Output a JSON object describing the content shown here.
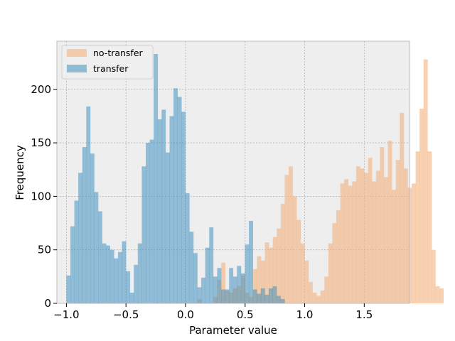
{
  "chart_data": {
    "type": "histogram",
    "title": "",
    "xlabel": "Parameter value",
    "ylabel": "Frequency",
    "xlim": [
      -1.08,
      1.88
    ],
    "ylim": [
      0,
      245
    ],
    "x_ticks": [
      -1.0,
      -0.5,
      0.0,
      0.5,
      1.0,
      1.5
    ],
    "x_tick_labels": [
      "−1.0",
      "−0.5",
      "0.0",
      "0.5",
      "1.0",
      "1.5"
    ],
    "y_ticks": [
      0,
      50,
      100,
      150,
      200
    ],
    "y_tick_labels": [
      "0",
      "50",
      "100",
      "150",
      "200"
    ],
    "grid": true,
    "legend_position": "top-left",
    "series": [
      {
        "name": "no-transfer",
        "color": "#f2b27f",
        "opacity": 0.6,
        "bin_start": 0.1,
        "bin_width": 0.0333,
        "values": [
          4,
          0,
          0,
          0,
          6,
          22,
          38,
          12,
          10,
          14,
          16,
          26,
          10,
          6,
          32,
          44,
          40,
          57,
          52,
          62,
          70,
          93,
          120,
          128,
          100,
          78,
          56,
          40,
          20,
          10,
          7,
          12,
          25,
          56,
          75,
          87,
          112,
          116,
          110,
          114,
          128,
          126,
          122,
          136,
          114,
          124,
          146,
          118,
          152,
          106,
          134,
          178,
          126,
          108,
          112,
          142,
          182,
          228,
          142,
          50,
          16,
          14
        ]
      },
      {
        "name": "transfer",
        "color": "#348abd",
        "opacity": 0.5,
        "bin_start": -1.0,
        "bin_width": 0.0333,
        "values": [
          26,
          72,
          96,
          122,
          146,
          184,
          140,
          104,
          86,
          56,
          54,
          50,
          42,
          48,
          58,
          30,
          10,
          36,
          56,
          128,
          150,
          153,
          233,
          172,
          181,
          141,
          175,
          201,
          193,
          179,
          103,
          67,
          47,
          15,
          24,
          52,
          71,
          25,
          33,
          13,
          13,
          33,
          25,
          35,
          28,
          55,
          77,
          13,
          9,
          14,
          8,
          14,
          16,
          7,
          4
        ]
      }
    ]
  }
}
